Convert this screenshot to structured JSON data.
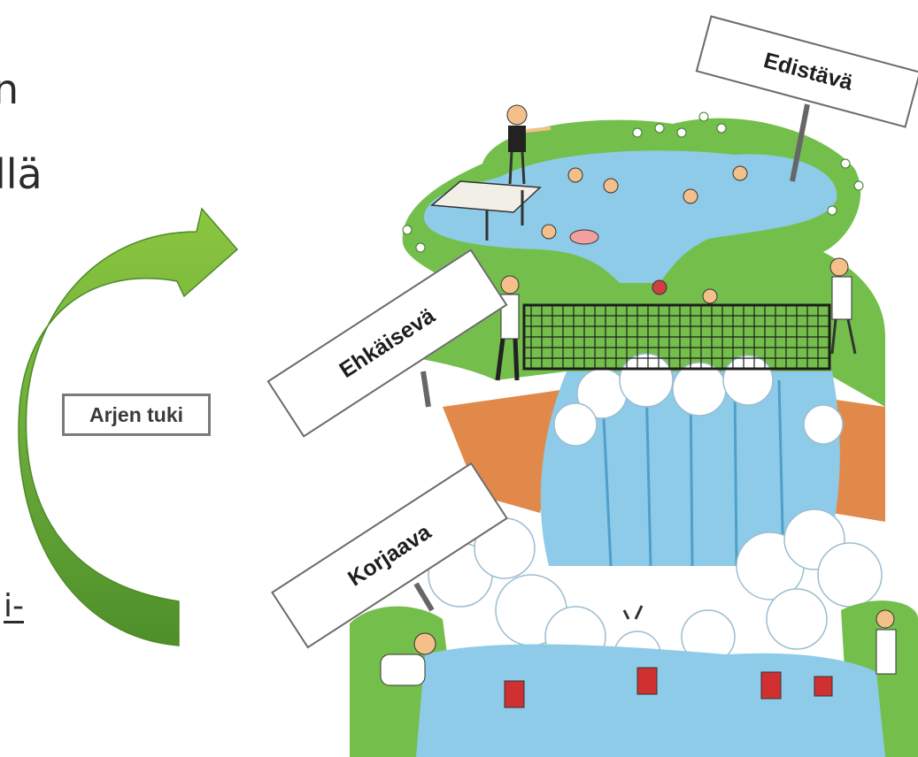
{
  "left_text": {
    "fragment_1": "n",
    "fragment_2": "llä",
    "fragment_3": "i-"
  },
  "arrow_label": "Arjen tuki",
  "signs": {
    "edistava": "Edistävä",
    "ehkaiseva": "Ehkäisevä",
    "korjaava": "Korjaava"
  },
  "colors": {
    "arrow_green": "#6cad3c",
    "water_blue": "#8ecbe8",
    "grass_green": "#74bf4c",
    "earth_orange": "#e0894a"
  }
}
